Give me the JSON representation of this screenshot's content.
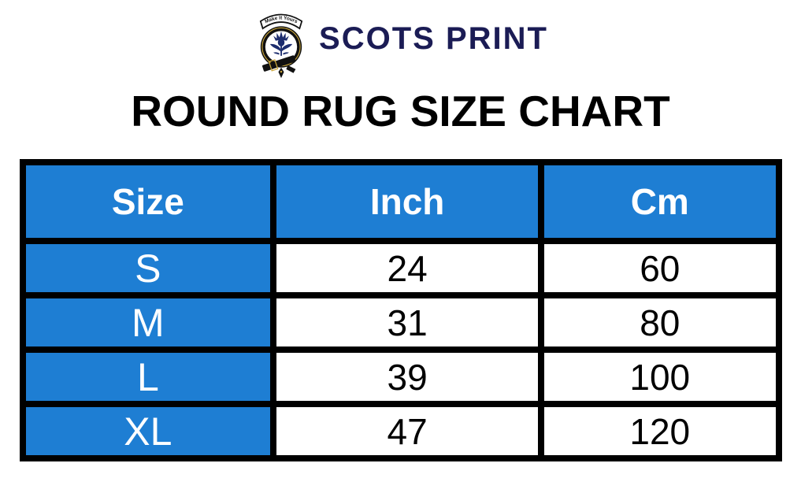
{
  "brand": {
    "name": "SCOTS PRINT",
    "motto": "Make It Yours"
  },
  "title": "ROUND RUG SIZE CHART",
  "table": {
    "columns": [
      "Size",
      "Inch",
      "Cm"
    ],
    "rows": [
      [
        "S",
        "24",
        "60"
      ],
      [
        "M",
        "31",
        "80"
      ],
      [
        "L",
        "39",
        "100"
      ],
      [
        "XL",
        "47",
        "120"
      ]
    ]
  },
  "colors": {
    "header_blue": "#1e7ed3",
    "border_black": "#000000",
    "brand_navy": "#1b1c55",
    "crest_gold": "#c9a53a",
    "text_white": "#ffffff",
    "text_black": "#000000"
  },
  "chart_data": {
    "type": "table",
    "title": "ROUND RUG SIZE CHART",
    "columns": [
      "Size",
      "Inch",
      "Cm"
    ],
    "rows": [
      [
        "S",
        24,
        60
      ],
      [
        "M",
        31,
        80
      ],
      [
        "L",
        39,
        100
      ],
      [
        "XL",
        47,
        120
      ]
    ]
  }
}
